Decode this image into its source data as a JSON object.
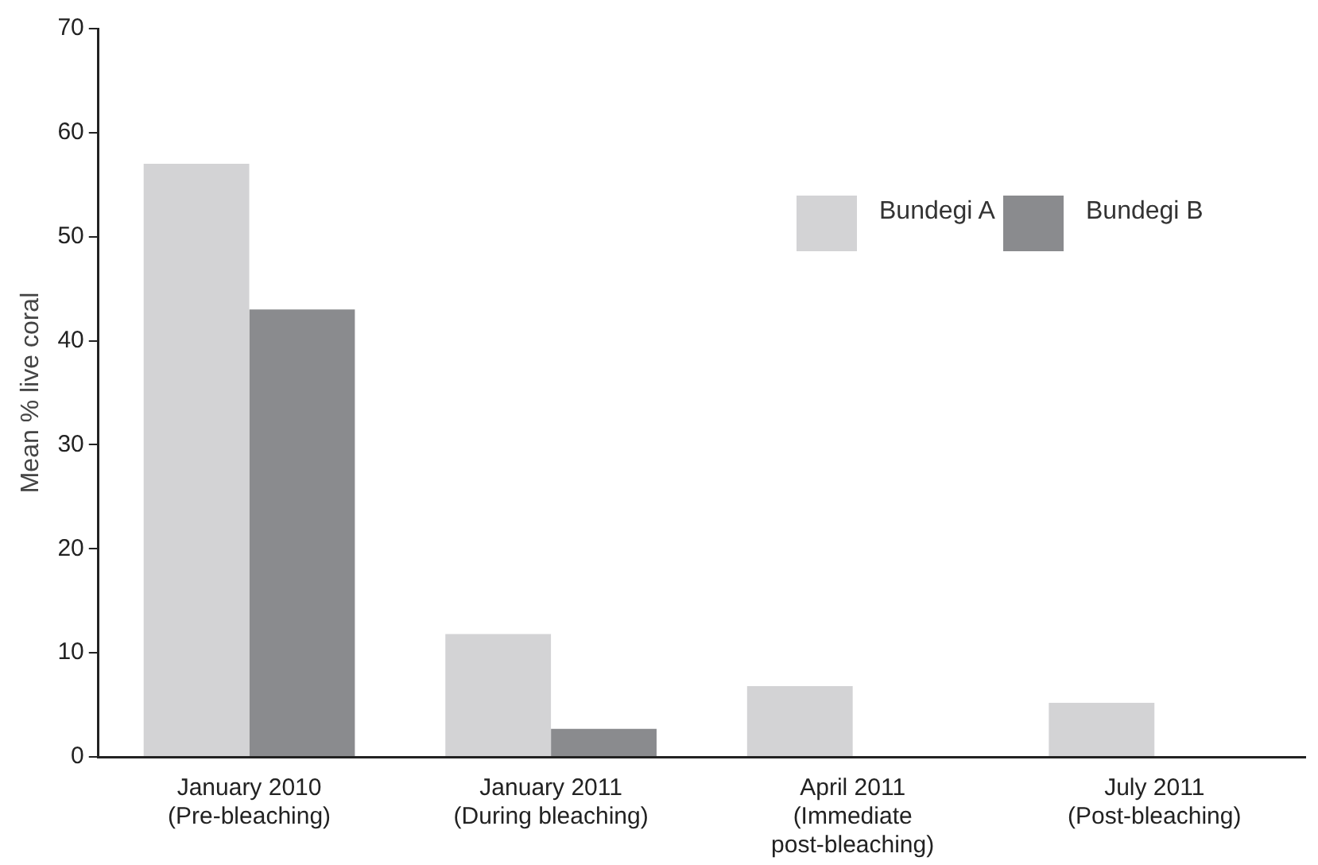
{
  "chart_data": {
    "type": "bar",
    "ylabel": "Mean % live coral",
    "categories": [
      "January 2010\n(Pre-bleaching)",
      "January 2011\n(During bleaching)",
      "April 2011\n(Immediate\npost-bleaching)",
      "July 2011\n(Post-bleaching)"
    ],
    "series": [
      {
        "name": "Bundegi A",
        "color": "#d3d3d5",
        "values": [
          57,
          11.8,
          6.8,
          5.2
        ]
      },
      {
        "name": "Bundegi B",
        "color": "#8a8b8e",
        "values": [
          43,
          2.7,
          null,
          null
        ]
      }
    ],
    "ylim": [
      0,
      70
    ],
    "yticks": [
      0,
      10,
      20,
      30,
      40,
      50,
      60,
      70
    ],
    "grid": false,
    "legend": "top right"
  }
}
